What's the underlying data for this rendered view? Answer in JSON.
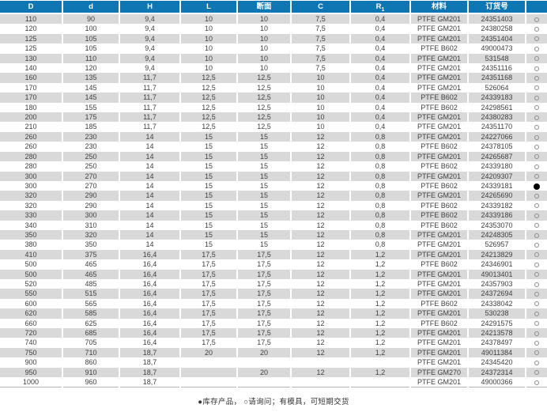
{
  "table": {
    "columns": [
      {
        "key": "D",
        "label": "D"
      },
      {
        "key": "d",
        "label": "d"
      },
      {
        "key": "H",
        "label": "H"
      },
      {
        "key": "L",
        "label": "L"
      },
      {
        "key": "section",
        "label": "断面"
      },
      {
        "key": "C",
        "label": "C"
      },
      {
        "key": "R1",
        "label": "R",
        "label_sub": "1"
      },
      {
        "key": "material",
        "label": "材料"
      },
      {
        "key": "order",
        "label": "订货号"
      },
      {
        "key": "status",
        "label": ""
      }
    ],
    "rows": [
      [
        "110",
        "90",
        "9,4",
        "10",
        "10",
        "7,5",
        "0,4",
        "PTFE GM201",
        "24351403",
        "open"
      ],
      [
        "120",
        "100",
        "9,4",
        "10",
        "10",
        "7,5",
        "0,4",
        "PTFE GM201",
        "24380258",
        "open"
      ],
      [
        "125",
        "105",
        "9,4",
        "10",
        "10",
        "7,5",
        "0,4",
        "PTFE GM201",
        "24351404",
        "open"
      ],
      [
        "125",
        "105",
        "9,4",
        "10",
        "10",
        "7,5",
        "0,4",
        "PTFE B602",
        "49000473",
        "open"
      ],
      [
        "130",
        "110",
        "9,4",
        "10",
        "10",
        "7,5",
        "0,4",
        "PTFE GM201",
        "531548",
        "open"
      ],
      [
        "140",
        "120",
        "9,4",
        "10",
        "10",
        "7,5",
        "0,4",
        "PTFE GM201",
        "24351116",
        "open"
      ],
      [
        "160",
        "135",
        "11,7",
        "12,5",
        "12,5",
        "10",
        "0,4",
        "PTFE GM201",
        "24351168",
        "open"
      ],
      [
        "170",
        "145",
        "11,7",
        "12,5",
        "12,5",
        "10",
        "0,4",
        "PTFE GM201",
        "526064",
        "open"
      ],
      [
        "170",
        "145",
        "11,7",
        "12,5",
        "12,5",
        "10",
        "0,4",
        "PTFE B602",
        "24339183",
        "open"
      ],
      [
        "180",
        "155",
        "11,7",
        "12,5",
        "12,5",
        "10",
        "0,4",
        "PTFE B602",
        "24298561",
        "open"
      ],
      [
        "200",
        "175",
        "11,7",
        "12,5",
        "12,5",
        "10",
        "0,4",
        "PTFE GM201",
        "24380283",
        "open"
      ],
      [
        "210",
        "185",
        "11,7",
        "12,5",
        "12,5",
        "10",
        "0,4",
        "PTFE GM201",
        "24351170",
        "open"
      ],
      [
        "260",
        "230",
        "14",
        "15",
        "15",
        "12",
        "0,8",
        "PTFE GM201",
        "24227066",
        "open"
      ],
      [
        "260",
        "230",
        "14",
        "15",
        "15",
        "12",
        "0,8",
        "PTFE B602",
        "24378105",
        "open"
      ],
      [
        "280",
        "250",
        "14",
        "15",
        "15",
        "12",
        "0,8",
        "PTFE GM201",
        "24265687",
        "open"
      ],
      [
        "280",
        "250",
        "14",
        "15",
        "15",
        "12",
        "0,8",
        "PTFE B602",
        "24339180",
        "open"
      ],
      [
        "300",
        "270",
        "14",
        "15",
        "15",
        "12",
        "0,8",
        "PTFE GM201",
        "24209307",
        "open"
      ],
      [
        "300",
        "270",
        "14",
        "15",
        "15",
        "12",
        "0,8",
        "PTFE B602",
        "24339181",
        "filled"
      ],
      [
        "320",
        "290",
        "14",
        "15",
        "15",
        "12",
        "0,8",
        "PTFE GM201",
        "24265690",
        "open"
      ],
      [
        "320",
        "290",
        "14",
        "15",
        "15",
        "12",
        "0,8",
        "PTFE B602",
        "24339182",
        "open"
      ],
      [
        "330",
        "300",
        "14",
        "15",
        "15",
        "12",
        "0,8",
        "PTFE B602",
        "24339186",
        "open"
      ],
      [
        "340",
        "310",
        "14",
        "15",
        "15",
        "12",
        "0,8",
        "PTFE B602",
        "24353070",
        "open"
      ],
      [
        "350",
        "320",
        "14",
        "15",
        "15",
        "12",
        "0,8",
        "PTFE GM201",
        "24248305",
        "open"
      ],
      [
        "380",
        "350",
        "14",
        "15",
        "15",
        "12",
        "0,8",
        "PTFE GM201",
        "526957",
        "open"
      ],
      [
        "410",
        "375",
        "16,4",
        "17,5",
        "17,5",
        "12",
        "1,2",
        "PTFE GM201",
        "24213829",
        "open"
      ],
      [
        "500",
        "465",
        "16,4",
        "17,5",
        "17,5",
        "12",
        "1,2",
        "PTFE B602",
        "24346901",
        "open"
      ],
      [
        "500",
        "465",
        "16,4",
        "17,5",
        "17,5",
        "12",
        "1,2",
        "PTFE GM201",
        "49013401",
        "open"
      ],
      [
        "520",
        "485",
        "16,4",
        "17,5",
        "17,5",
        "12",
        "1,2",
        "PTFE GM201",
        "24357903",
        "open"
      ],
      [
        "550",
        "515",
        "16,4",
        "17,5",
        "17,5",
        "12",
        "1,2",
        "PTFE GM201",
        "24372694",
        "open"
      ],
      [
        "600",
        "565",
        "16,4",
        "17,5",
        "17,5",
        "12",
        "1,2",
        "PTFE B602",
        "24338042",
        "open"
      ],
      [
        "620",
        "585",
        "16,4",
        "17,5",
        "17,5",
        "12",
        "1,2",
        "PTFE GM201",
        "530238",
        "open"
      ],
      [
        "660",
        "625",
        "16,4",
        "17,5",
        "17,5",
        "12",
        "1,2",
        "PTFE B602",
        "24291575",
        "open"
      ],
      [
        "720",
        "685",
        "16,4",
        "17,5",
        "17,5",
        "12",
        "1,2",
        "PTFE GM201",
        "24213578",
        "open"
      ],
      [
        "740",
        "705",
        "16,4",
        "17,5",
        "17,5",
        "12",
        "1,2",
        "PTFE GM201",
        "24378497",
        "open"
      ],
      [
        "750",
        "710",
        "18,7",
        "20",
        "20",
        "12",
        "1,2",
        "PTFE GM201",
        "49011384",
        "open"
      ],
      [
        "900",
        "860",
        "18,7",
        "",
        "",
        "",
        "",
        "PTFE GM201",
        "24345420",
        "open"
      ],
      [
        "950",
        "910",
        "18,7",
        "",
        "20",
        "12",
        "1,2",
        "PTFE GM270",
        "24372314",
        "open"
      ],
      [
        "1000",
        "960",
        "18,7",
        "",
        "",
        "",
        "",
        "PTFE GM201",
        "49000366",
        "open"
      ]
    ]
  },
  "legend": {
    "text": "●库存产品， ○请询问；有模具，可短期交货"
  },
  "icons": {
    "open_dot": "on-request-icon",
    "filled_dot": "in-stock-icon"
  },
  "colors": {
    "header_bg": "#0f76b4",
    "header_text": "#ffffff",
    "row_alt_bg": "#d9d9d9",
    "row_base_bg": "#ffffff",
    "cell_text": "#404040",
    "filled_dot": "#000000",
    "open_dot_border": "#8b8b8b"
  }
}
